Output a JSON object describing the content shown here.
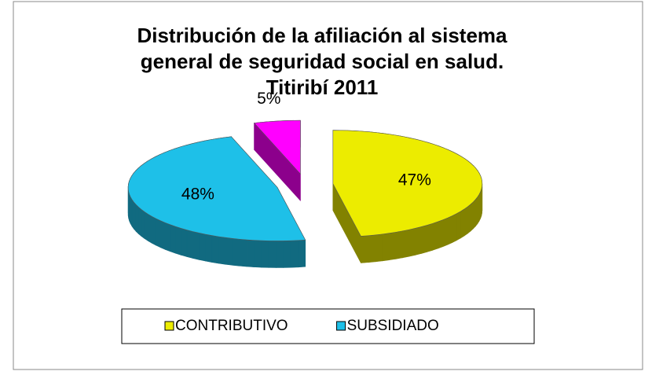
{
  "chart_data": {
    "type": "pie3d",
    "title": [
      "Distribución de la afiliación al sistema",
      "general de seguridad social en salud.",
      "Titiribí 2011"
    ],
    "categories": [
      "CONTRIBUTIVO",
      "SUBSIDIADO",
      null
    ],
    "values": [
      47,
      48,
      5
    ],
    "value_labels": [
      "47%",
      "48%",
      "5%"
    ],
    "colors": [
      "#ecec00",
      "#1ec0e8",
      "#ff00ff"
    ],
    "legend": "bottom"
  }
}
